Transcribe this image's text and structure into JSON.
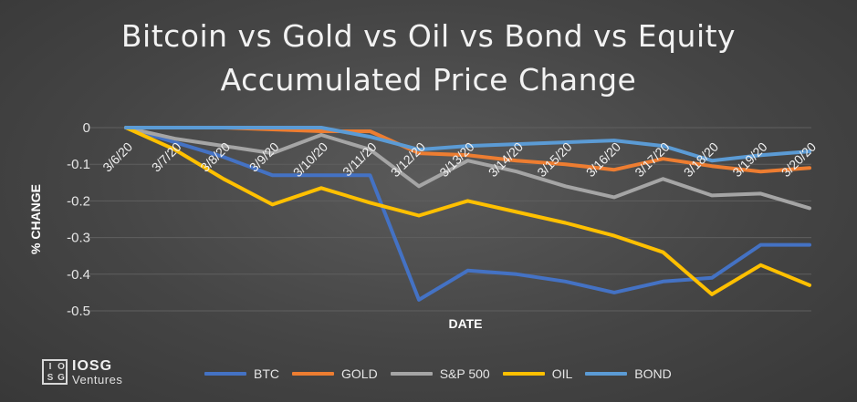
{
  "title_line1": "Bitcoin  vs Gold vs Oil vs Bond vs Equity",
  "title_line2": "Accumulated Price Change",
  "logo": {
    "brand": "IOSG",
    "sub": "Ventures",
    "box_letters": [
      "I",
      "O",
      "S",
      "G"
    ]
  },
  "chart_data": {
    "type": "line",
    "title": "Bitcoin  vs Gold vs Oil vs Bond vs Equity Accumulated Price Change",
    "xlabel": "DATE",
    "ylabel": "% CHANGE",
    "ylim": [
      -0.5,
      0
    ],
    "yticks": [
      0,
      -0.1,
      -0.2,
      -0.3,
      -0.4,
      -0.5
    ],
    "ytick_labels": [
      "0",
      "-0.1",
      "-0.2",
      "-0.3",
      "-0.4",
      "-0.5"
    ],
    "categories": [
      "3/6/20",
      "3/7/20",
      "3/8/20",
      "3/9/20",
      "3/10/20",
      "3/11/20",
      "3/12/20",
      "3/13/20",
      "3/14/20",
      "3/15/20",
      "3/16/20",
      "3/17/20",
      "3/18/20",
      "3/19/20",
      "3/20/20"
    ],
    "grid": true,
    "legend_position": "bottom",
    "series": [
      {
        "name": "BTC",
        "color": "#4472c4",
        "values": [
          0,
          -0.04,
          -0.08,
          -0.13,
          -0.13,
          -0.13,
          -0.47,
          -0.39,
          -0.4,
          -0.42,
          -0.45,
          -0.42,
          -0.41,
          -0.32,
          -0.32
        ]
      },
      {
        "name": "GOLD",
        "color": "#ed7d31",
        "values": [
          0,
          0,
          0,
          -0.005,
          -0.01,
          -0.01,
          -0.07,
          -0.075,
          -0.09,
          -0.1,
          -0.115,
          -0.085,
          -0.105,
          -0.12,
          -0.11
        ]
      },
      {
        "name": "S&P 500",
        "color": "#a5a5a5",
        "values": [
          0,
          -0.03,
          -0.05,
          -0.07,
          -0.02,
          -0.06,
          -0.16,
          -0.09,
          -0.12,
          -0.16,
          -0.19,
          -0.14,
          -0.185,
          -0.18,
          -0.22
        ]
      },
      {
        "name": "OIL",
        "color": "#ffc000",
        "values": [
          0,
          -0.06,
          -0.14,
          -0.21,
          -0.165,
          -0.205,
          -0.24,
          -0.2,
          -0.23,
          -0.26,
          -0.295,
          -0.34,
          -0.455,
          -0.375,
          -0.43
        ]
      },
      {
        "name": "BOND",
        "color": "#5b9bd5",
        "values": [
          0,
          0,
          0,
          0,
          0,
          -0.025,
          -0.06,
          -0.05,
          -0.045,
          -0.04,
          -0.035,
          -0.05,
          -0.09,
          -0.075,
          -0.065
        ]
      }
    ]
  }
}
